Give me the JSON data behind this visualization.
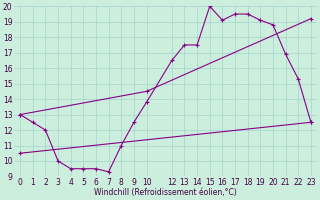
{
  "xlabel": "Windchill (Refroidissement éolien,°C)",
  "xlim": [
    -0.5,
    23.5
  ],
  "ylim": [
    9,
    20
  ],
  "xticks": [
    0,
    1,
    2,
    3,
    4,
    5,
    6,
    7,
    8,
    9,
    10,
    12,
    13,
    14,
    15,
    16,
    17,
    18,
    19,
    20,
    21,
    22,
    23
  ],
  "yticks": [
    9,
    10,
    11,
    12,
    13,
    14,
    15,
    16,
    17,
    18,
    19,
    20
  ],
  "bg_color": "#cceedd",
  "line_color": "#880088",
  "line1_x": [
    0,
    1,
    2,
    3,
    4,
    5,
    6,
    7,
    8,
    9,
    10,
    12,
    13,
    14,
    15,
    16,
    17,
    18,
    19,
    20,
    21,
    22,
    23
  ],
  "line1_y": [
    13,
    12.5,
    12,
    10,
    9.5,
    9.5,
    9.5,
    9.3,
    11.0,
    12.5,
    13.8,
    16.5,
    17.5,
    17.5,
    20.0,
    19.1,
    19.5,
    19.5,
    19.1,
    18.8,
    16.9,
    15.3,
    12.5
  ],
  "line2_x": [
    0,
    10,
    23
  ],
  "line2_y": [
    13,
    14.5,
    19.2
  ],
  "line3_x": [
    0,
    23
  ],
  "line3_y": [
    10.5,
    12.5
  ],
  "tick_fontsize": 5.5,
  "xlabel_fontsize": 5.5,
  "tick_color": "#440044",
  "grid_color": "#99cccc",
  "linewidth": 0.8,
  "markersize": 3.5
}
